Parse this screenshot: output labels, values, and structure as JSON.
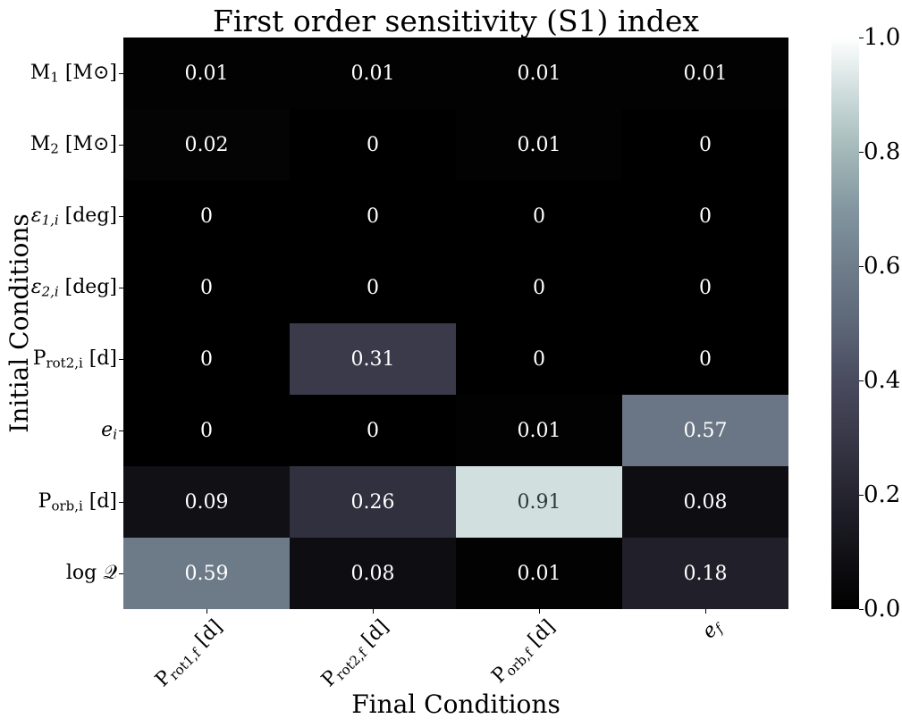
{
  "chart_data": {
    "type": "heatmap",
    "title": "First order sensitivity (S1) index",
    "xlabel": "Final Conditions",
    "ylabel": "Initial Conditions",
    "x_categories": [
      {
        "main": "P",
        "sub": "rot1,f",
        "unit": "[d]"
      },
      {
        "main": "P",
        "sub": "rot2,f",
        "unit": "[d]"
      },
      {
        "main": "P",
        "sub": "orb,f",
        "unit": "[d]"
      },
      {
        "main": "e",
        "sub": "f",
        "unit": ""
      }
    ],
    "y_categories": [
      {
        "main": "M",
        "sub": "1",
        "unit": "[M⊙]"
      },
      {
        "main": "M",
        "sub": "2",
        "unit": "[M⊙]"
      },
      {
        "main": "ε",
        "sub": "1,i",
        "unit": "[deg]"
      },
      {
        "main": "ε",
        "sub": "2,i",
        "unit": "[deg]"
      },
      {
        "main": "P",
        "sub": "rot2,i",
        "unit": "[d]"
      },
      {
        "main": "e",
        "sub": "i",
        "unit": ""
      },
      {
        "main": "P",
        "sub": "orb,i",
        "unit": "[d]"
      },
      {
        "main": "log 𝒬",
        "sub": "",
        "unit": ""
      }
    ],
    "values": [
      [
        0.01,
        0.01,
        0.01,
        0.01
      ],
      [
        0.02,
        0,
        0.01,
        0
      ],
      [
        0,
        0,
        0,
        0
      ],
      [
        0,
        0,
        0,
        0
      ],
      [
        0,
        0.31,
        0,
        0
      ],
      [
        0,
        0,
        0.01,
        0.57
      ],
      [
        0.09,
        0.26,
        0.91,
        0.08
      ],
      [
        0.59,
        0.08,
        0.01,
        0.18
      ]
    ],
    "colorbar": {
      "range": [
        0.0,
        1.0
      ],
      "ticks": [
        "0.0",
        "0.2",
        "0.4",
        "0.6",
        "0.8",
        "1.0"
      ],
      "colormap": "bone"
    },
    "grid": false
  }
}
